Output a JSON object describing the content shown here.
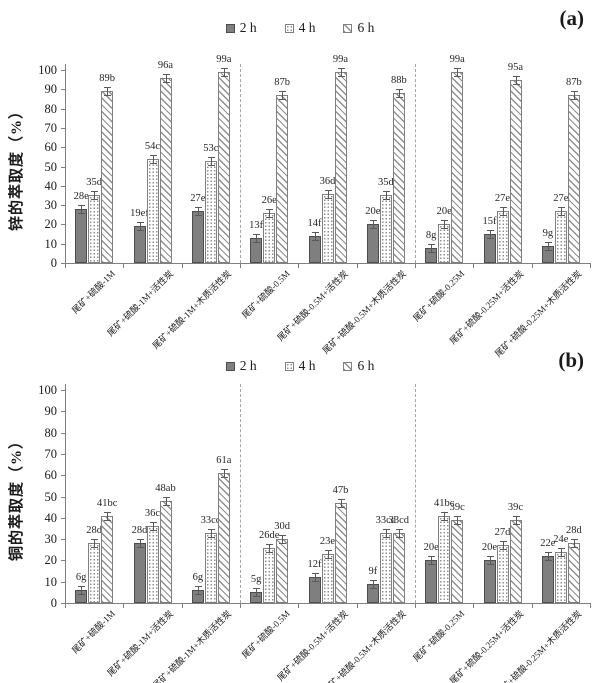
{
  "figure": {
    "legend_labels": [
      "2 h",
      "4 h",
      "6 h"
    ],
    "colors": {
      "solid_bar": "#7f7f7f",
      "solid_bar_border": "#4d4d4d",
      "pattern_ink": "#8f8f8f",
      "axis": "#808080",
      "text": "#1a1a1a",
      "divider": "#a6a6a6",
      "error_bar": "#595959"
    }
  },
  "chart_data": [
    {
      "type": "bar",
      "panel_tag": "(a)",
      "ylabel": "锌的萃取度（%）",
      "xlabel": "",
      "ylim": [
        0,
        100
      ],
      "yticks": [
        0,
        10,
        20,
        30,
        40,
        50,
        60,
        70,
        80,
        90,
        100
      ],
      "grid": false,
      "legend_position": "top-center",
      "error_bar_size": 2,
      "group_dividers_after": [
        3,
        6
      ],
      "categories": [
        "尾矿+硫酸-1M",
        "尾矿+硫酸-1M+活性炭",
        "尾矿+硫酸-1M+木质活性炭",
        "尾矿+硫酸-0.5M",
        "尾矿+硫酸-0.5M+活性炭",
        "尾矿+硫酸-0.5M+木质活性炭",
        "尾矿+硫酸-0.25M",
        "尾矿+硫酸-0.25M+活性炭",
        "尾矿+硫酸-0.25M+木质活性炭"
      ],
      "series": [
        {
          "name": "2 h",
          "values": [
            28,
            19,
            27,
            13,
            14,
            20,
            8,
            15,
            9
          ],
          "point_labels": [
            "28e",
            "19ef",
            "27e",
            "13f",
            "14f",
            "20e",
            "8g",
            "15f",
            "9g"
          ]
        },
        {
          "name": "4 h",
          "values": [
            35,
            54,
            53,
            26,
            36,
            35,
            20,
            27,
            27
          ],
          "point_labels": [
            "35d",
            "54c",
            "53c",
            "26e",
            "36d",
            "35d",
            "20e",
            "27e",
            "27e"
          ]
        },
        {
          "name": "6 h",
          "values": [
            89,
            96,
            99,
            87,
            99,
            88,
            99,
            95,
            87
          ],
          "point_labels": [
            "89b",
            "96a",
            "99a",
            "87b",
            "99a",
            "88b",
            "99a",
            "95a",
            "87b"
          ]
        }
      ]
    },
    {
      "type": "bar",
      "panel_tag": "(b)",
      "ylabel": "铜的萃取度（%）",
      "xlabel": "",
      "ylim": [
        0,
        100
      ],
      "yticks": [
        0,
        10,
        20,
        30,
        40,
        50,
        60,
        70,
        80,
        90,
        100
      ],
      "grid": false,
      "legend_position": "top-center",
      "error_bar_size": 2,
      "group_dividers_after": [
        3,
        6
      ],
      "categories": [
        "尾矿+硫酸-1M",
        "尾矿+硫酸-1M+活性炭",
        "尾矿+硫酸-1M+木质活性炭",
        "尾矿+硫酸-0.5M",
        "尾矿+硫酸-0.5M+活性炭",
        "尾矿+硫酸-0.5M+木质活性炭",
        "尾矿+硫酸-0.25M",
        "尾矿+硫酸-0.25M+活性炭",
        "尾矿+硫酸-0.25M+木质活性炭"
      ],
      "series": [
        {
          "name": "2 h",
          "values": [
            6,
            28,
            6,
            5,
            12,
            9,
            20,
            20,
            22
          ],
          "point_labels": [
            "6g",
            "28d",
            "6g",
            "5g",
            "12f",
            "9f",
            "20e",
            "20e",
            "22e"
          ]
        },
        {
          "name": "4 h",
          "values": [
            28,
            36,
            33,
            26,
            23,
            33,
            41,
            27,
            24
          ],
          "point_labels": [
            "28d",
            "36c",
            "33cd",
            "26de",
            "23e",
            "33cd",
            "41bc",
            "27d",
            "24e"
          ]
        },
        {
          "name": "6 h",
          "values": [
            41,
            48,
            61,
            30,
            47,
            33,
            39,
            39,
            28
          ],
          "point_labels": [
            "41bc",
            "48ab",
            "61a",
            "30d",
            "47b",
            "33cd",
            "39c",
            "39c",
            "28d"
          ]
        }
      ]
    }
  ]
}
